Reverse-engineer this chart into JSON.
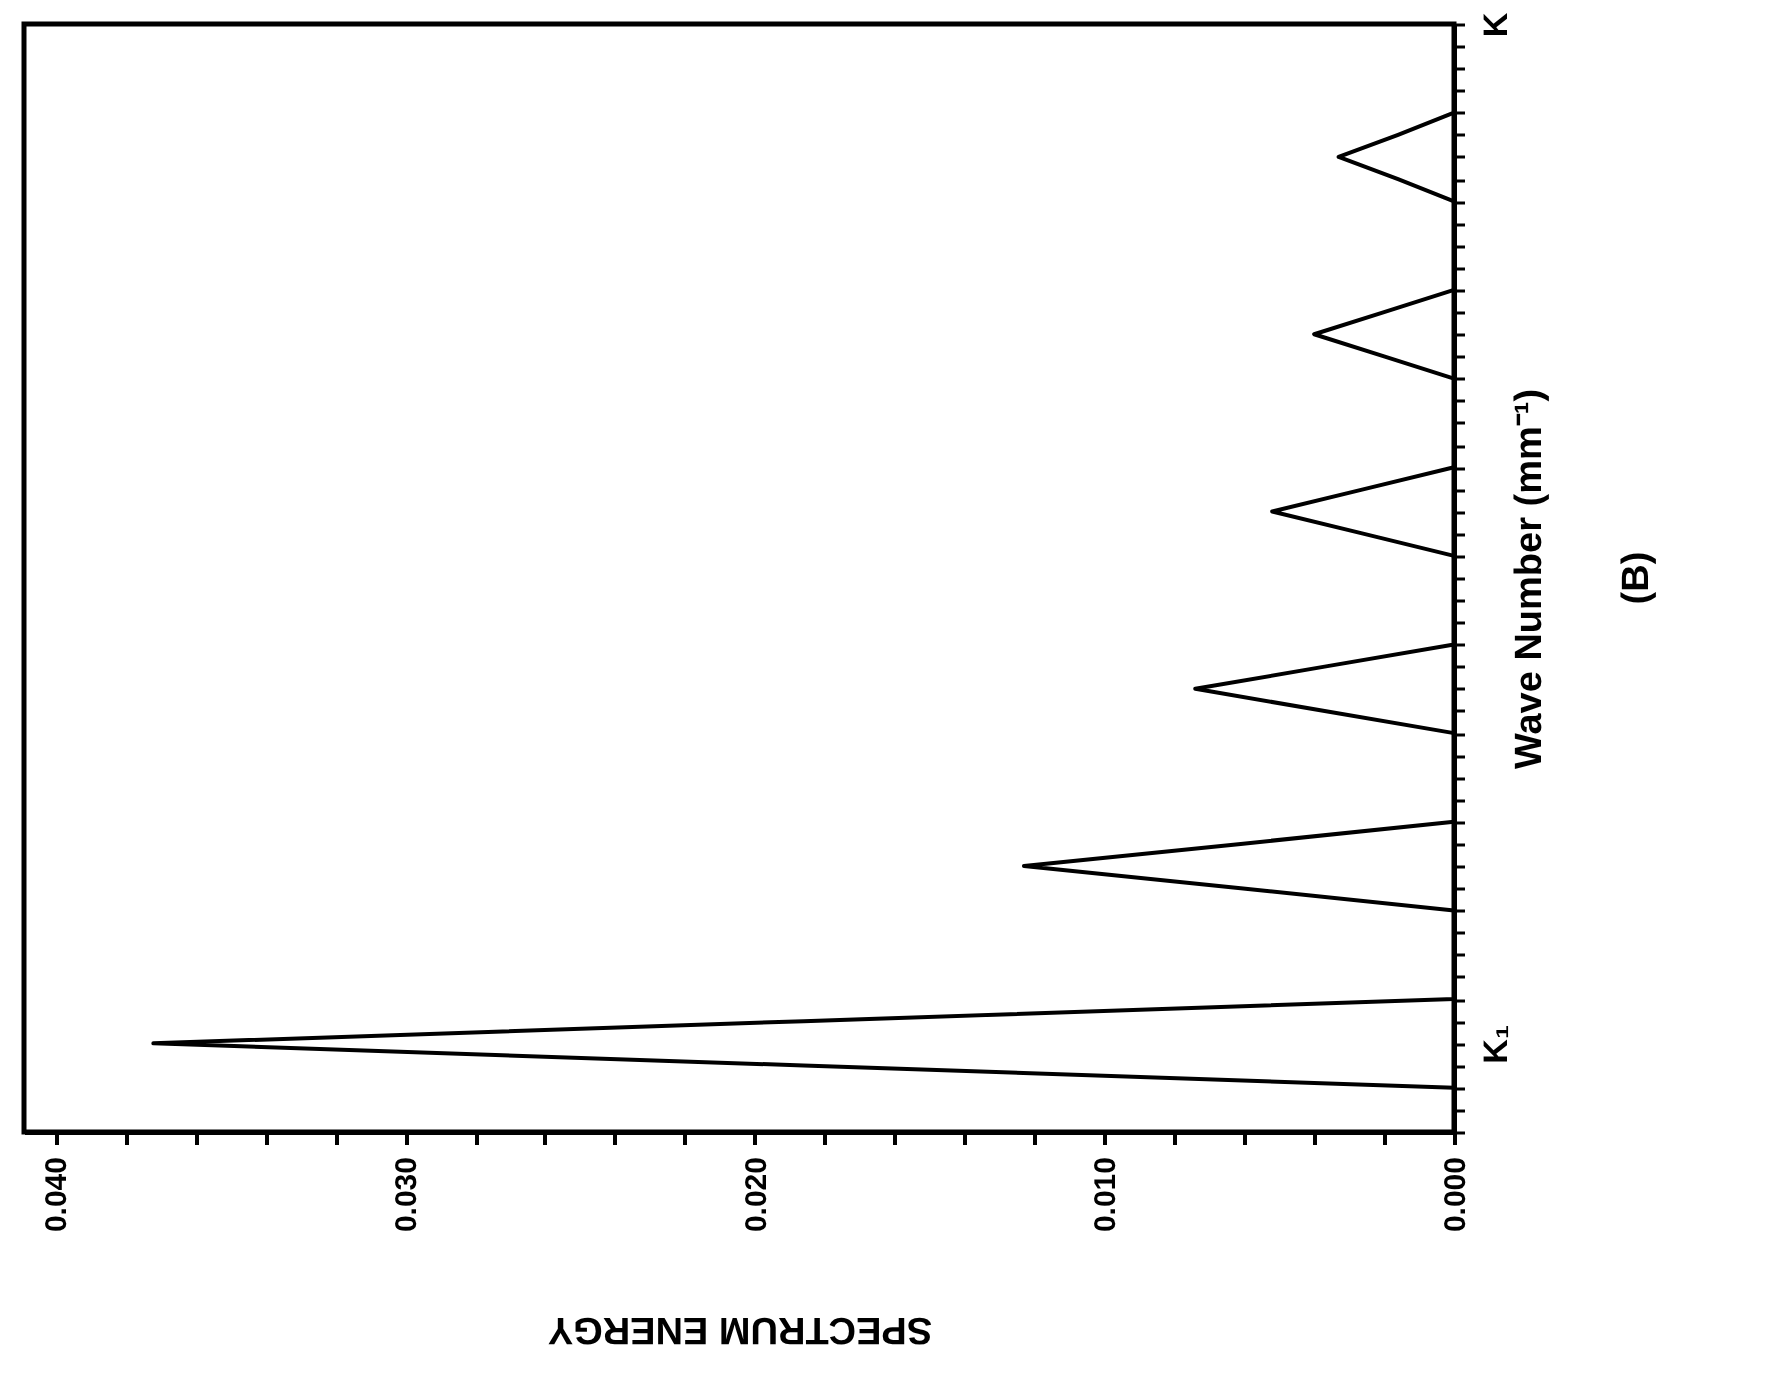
{
  "chart_data": {
    "type": "line",
    "title": "(B)",
    "xlabel": "SPECTRUM ENERGY",
    "ylabel": "Wave Number (mm⁻¹)",
    "orientation": "horizontal",
    "color": "#000000",
    "grid": false,
    "categories": [
      "K",
      null,
      null,
      null,
      null,
      null,
      null,
      null,
      null,
      null,
      null,
      null,
      null,
      null,
      null,
      null,
      null,
      null,
      null,
      null,
      null,
      null,
      null,
      null,
      null,
      null,
      null,
      null,
      null,
      null,
      null,
      null,
      null,
      null,
      null,
      null,
      null,
      null,
      null,
      null,
      null,
      null,
      null,
      null,
      null,
      null,
      "K₁",
      null,
      null,
      null,
      null
    ],
    "values": [
      0,
      0,
      0,
      0,
      0,
      0.0016,
      0.0033,
      0.0016,
      0,
      0,
      0,
      0,
      0,
      0.002,
      0.004,
      0.002,
      0,
      0,
      0,
      0,
      0,
      0.0026,
      0.0052,
      0.0026,
      0,
      0,
      0,
      0,
      0,
      0.0037,
      0.0074,
      0.0037,
      0,
      0,
      0,
      0,
      0,
      0.0061,
      0.0123,
      0.0061,
      0,
      0,
      0,
      0,
      0,
      0.0186,
      0.0372,
      0.0186,
      0,
      0,
      0
    ],
    "xlim": [
      0.0409,
      0
    ],
    "xticks": [
      {
        "value": 0.04,
        "label": "0.040"
      },
      {
        "value": 0.038,
        "label": null
      },
      {
        "value": 0.036,
        "label": null
      },
      {
        "value": 0.034,
        "label": null
      },
      {
        "value": 0.032,
        "label": null
      },
      {
        "value": 0.03,
        "label": "0.030"
      },
      {
        "value": 0.028,
        "label": null
      },
      {
        "value": 0.026,
        "label": null
      },
      {
        "value": 0.024,
        "label": null
      },
      {
        "value": 0.022,
        "label": null
      },
      {
        "value": 0.02,
        "label": "0.020"
      },
      {
        "value": 0.018,
        "label": null
      },
      {
        "value": 0.016,
        "label": null
      },
      {
        "value": 0.014,
        "label": null
      },
      {
        "value": 0.012,
        "label": null
      },
      {
        "value": 0.01,
        "label": "0.010"
      },
      {
        "value": 0.008,
        "label": null
      },
      {
        "value": 0.006,
        "label": null
      },
      {
        "value": 0.004,
        "label": null
      },
      {
        "value": 0.002,
        "label": null
      },
      {
        "value": 0,
        "label": "0.000"
      }
    ]
  }
}
